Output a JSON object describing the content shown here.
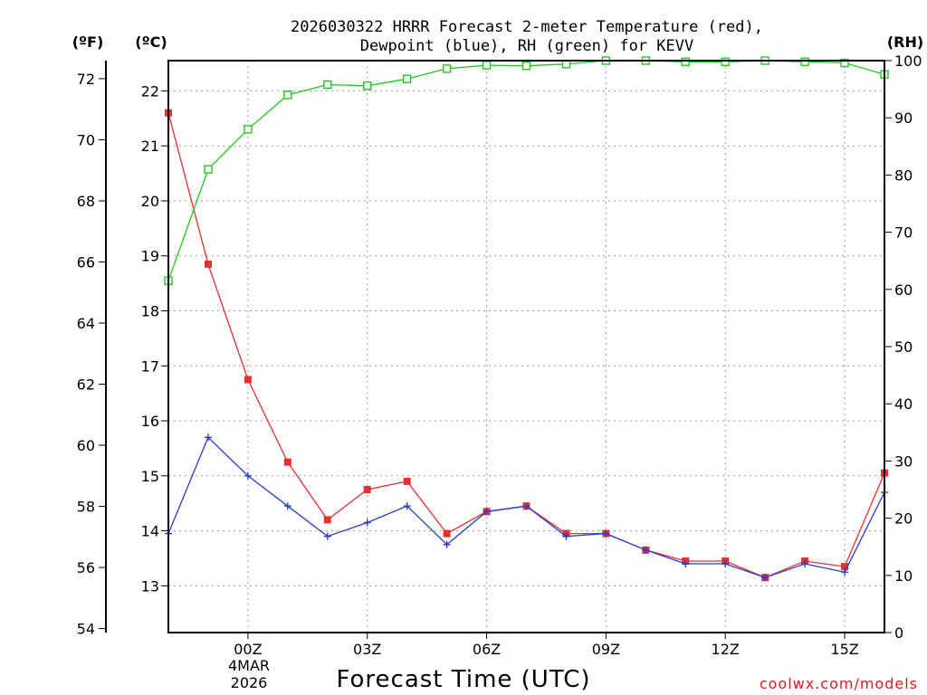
{
  "chart_data": {
    "type": "line",
    "title_line1": "2026030322 HRRR Forecast 2-meter Temperature (red),",
    "title_line2": "Dewpoint (blue), RH (green) for KEVV",
    "xlabel": "Forecast Time (UTC)",
    "credit": "coolwx.com/models",
    "unit_f": "(ºF)",
    "unit_c": "(ºC)",
    "unit_rh": "(RH)",
    "x": [
      -2,
      -1,
      0,
      1,
      2,
      3,
      4,
      5,
      6,
      7,
      8,
      9,
      10,
      11,
      12,
      13,
      14,
      15,
      16
    ],
    "xlim": [
      -2,
      16
    ],
    "x_ticks": [
      {
        "x": 0,
        "label": "00Z"
      },
      {
        "x": 3,
        "label": "03Z"
      },
      {
        "x": 6,
        "label": "06Z"
      },
      {
        "x": 9,
        "label": "09Z"
      },
      {
        "x": 12,
        "label": "12Z"
      },
      {
        "x": 15,
        "label": "15Z"
      }
    ],
    "date_label_line1": "4MAR",
    "date_label_line2": "2026",
    "c_ticks": [
      "13",
      "14",
      "15",
      "16",
      "17",
      "18",
      "19",
      "20",
      "21",
      "22"
    ],
    "f_ticks": [
      "54",
      "56",
      "58",
      "60",
      "62",
      "64",
      "66",
      "68",
      "70",
      "72"
    ],
    "rh_ticks": [
      "0",
      "10",
      "20",
      "30",
      "40",
      "50",
      "60",
      "70",
      "80",
      "90",
      "100"
    ],
    "ylim_c": [
      12.15,
      22.55
    ],
    "ylim_rh": [
      0,
      100
    ],
    "series": [
      {
        "name": "Temperature",
        "unit": "C",
        "color": "#e83030",
        "marker": "filled-square",
        "values": [
          21.6,
          18.85,
          16.75,
          15.25,
          14.2,
          14.75,
          14.9,
          13.95,
          14.35,
          14.45,
          13.95,
          13.95,
          13.65,
          13.45,
          13.45,
          13.15,
          13.45,
          13.35,
          15.05
        ]
      },
      {
        "name": "Dewpoint",
        "unit": "C",
        "color": "#2a3ccf",
        "marker": "plus",
        "values": [
          13.95,
          15.7,
          15.0,
          14.45,
          13.9,
          14.15,
          14.45,
          13.75,
          14.35,
          14.45,
          13.9,
          13.95,
          13.65,
          13.4,
          13.4,
          13.15,
          13.4,
          13.25,
          14.7
        ]
      },
      {
        "name": "RH",
        "unit": "%",
        "color": "#22c822",
        "marker": "open-square",
        "values": [
          61.5,
          81,
          88,
          94,
          95.8,
          95.6,
          96.8,
          98.6,
          99.2,
          99.1,
          99.4,
          100,
          100,
          99.8,
          99.8,
          100,
          99.8,
          99.6,
          97.6
        ]
      }
    ]
  }
}
